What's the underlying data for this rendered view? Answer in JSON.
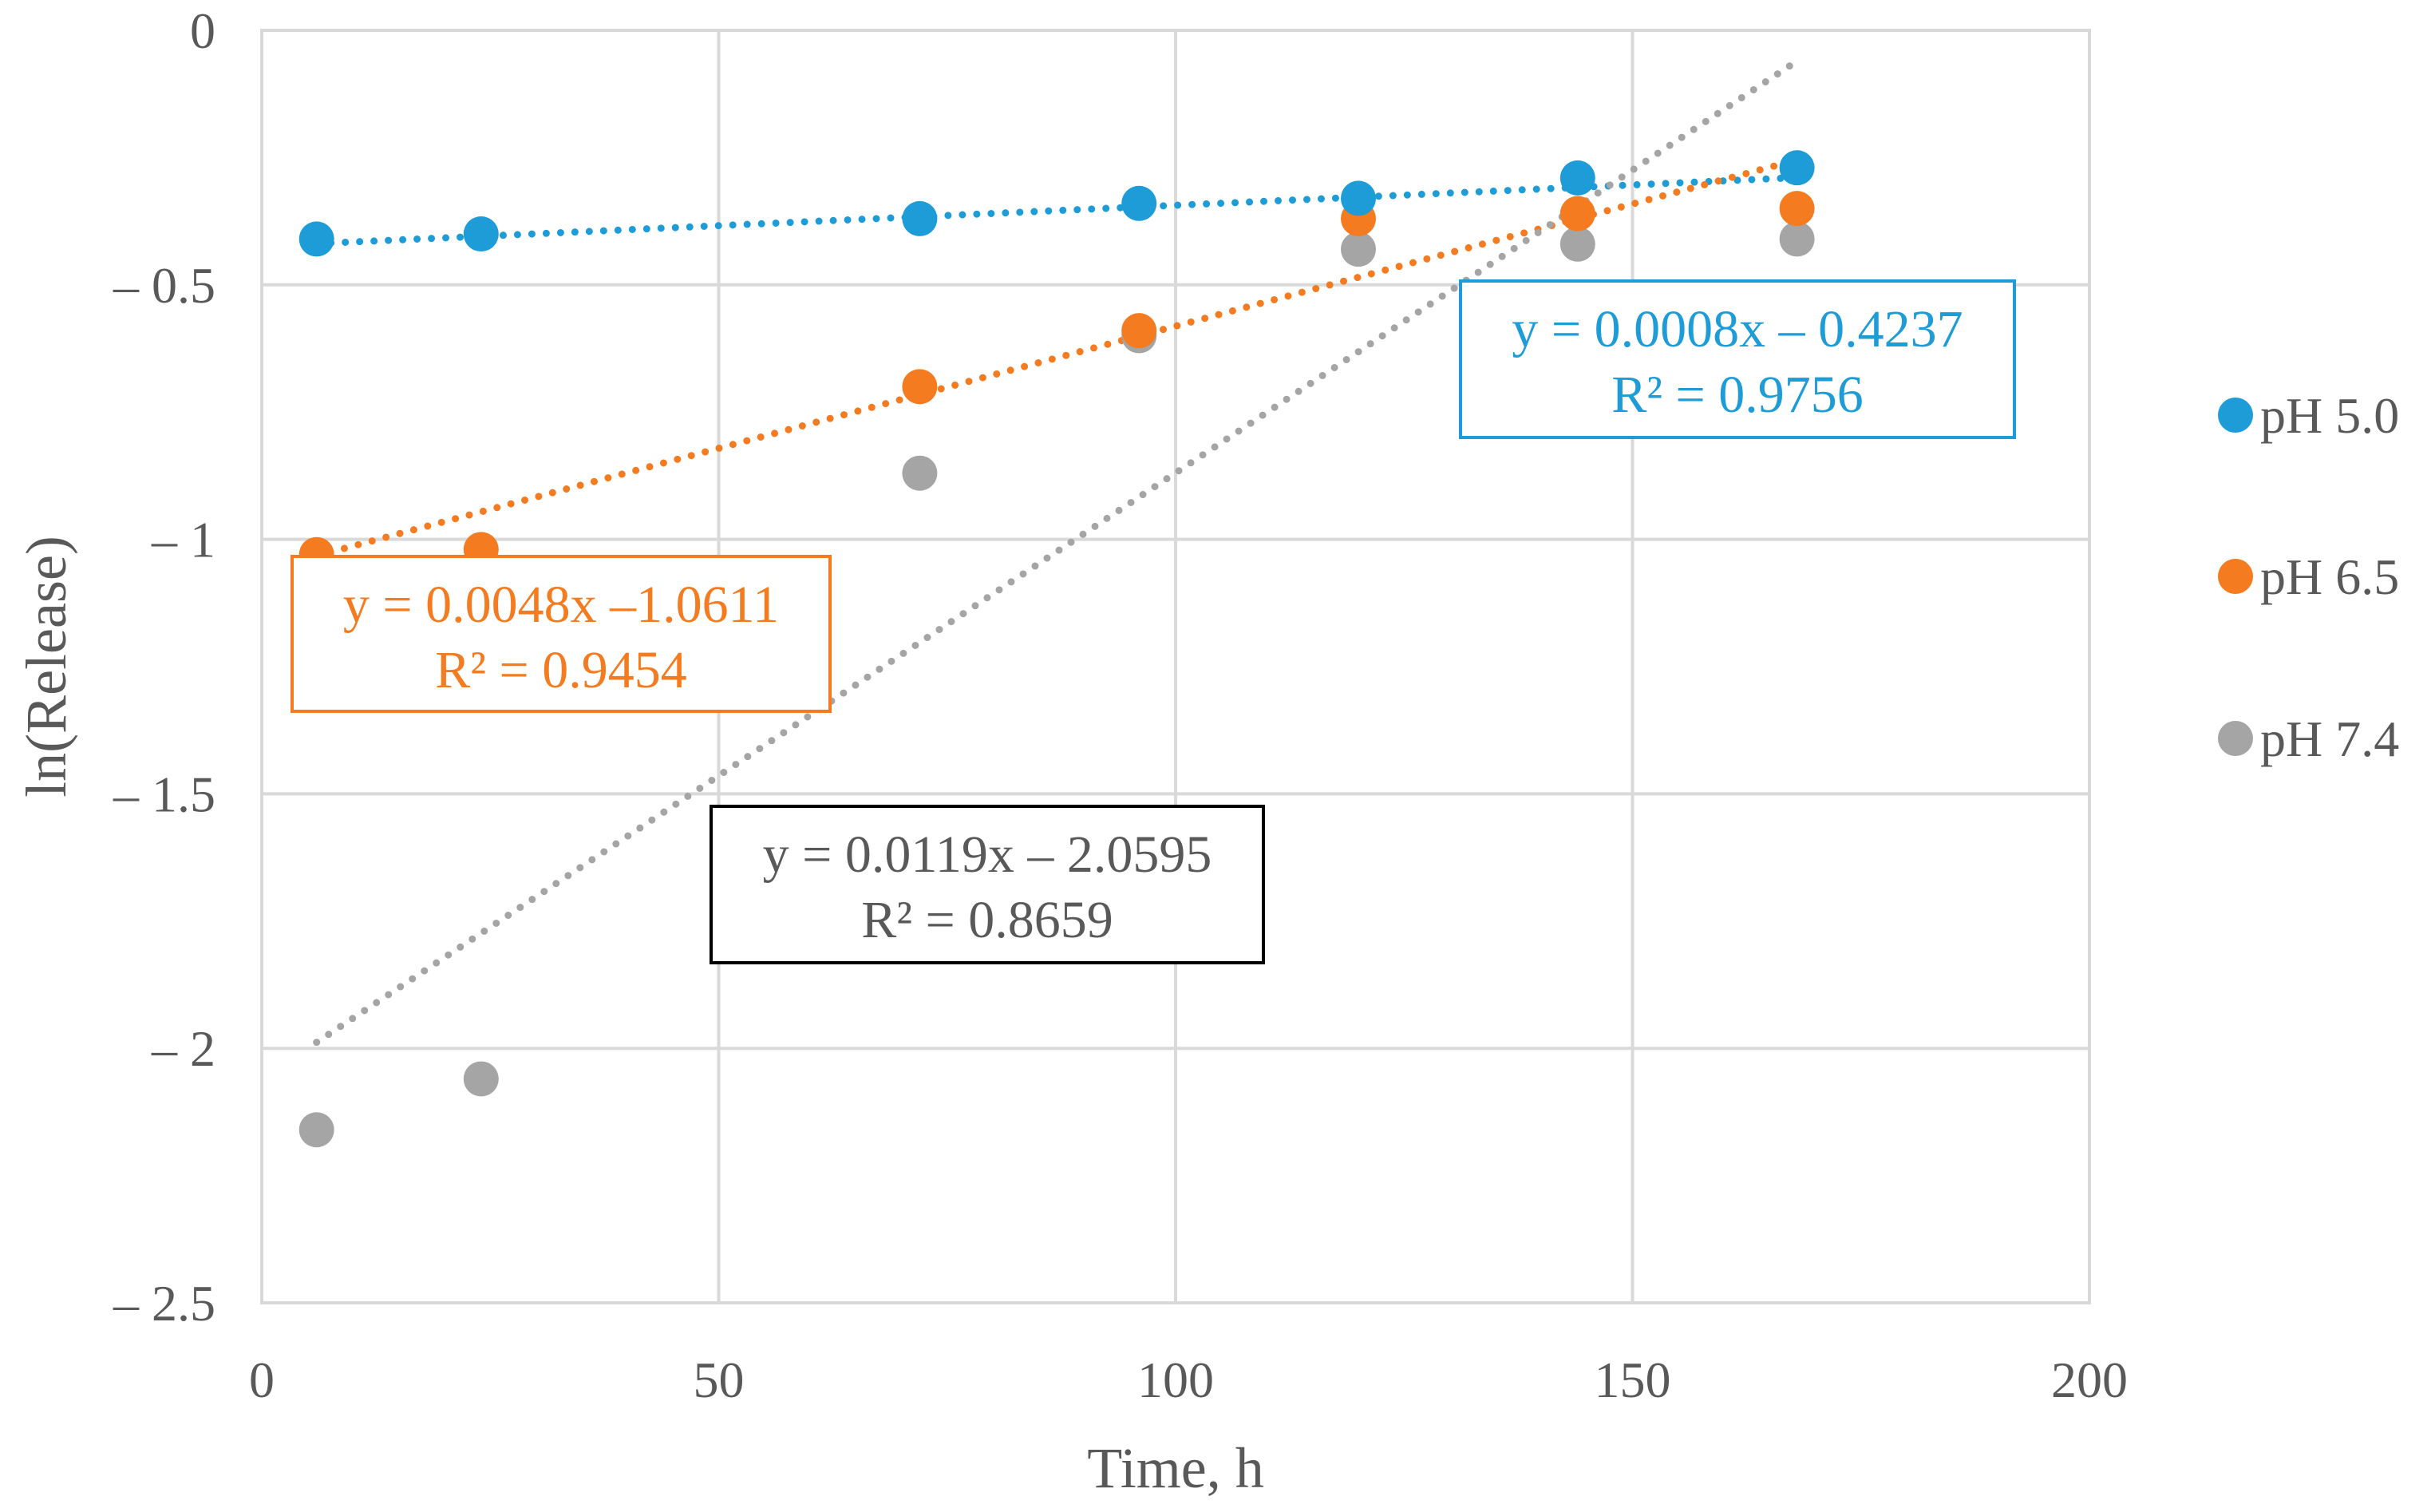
{
  "chart_data": {
    "type": "scatter",
    "title": "",
    "xlabel": "Time, h",
    "ylabel": "ln(Release)",
    "xlim": [
      0,
      200
    ],
    "ylim": [
      -2.5,
      0
    ],
    "xticks": [
      0,
      50,
      100,
      150,
      200
    ],
    "yticks": [
      0,
      -0.5,
      -1,
      -1.5,
      -2,
      -2.5
    ],
    "xtick_labels": [
      "0",
      "50",
      "100",
      "150",
      "200"
    ],
    "ytick_labels": [
      "0",
      "– 0.5",
      "– 1",
      "– 1.5",
      "– 2",
      "– 2.5"
    ],
    "grid": true,
    "legend_position": "right",
    "series": [
      {
        "name": "pH 5.0",
        "color": "#1E9CD7",
        "x": [
          6,
          24,
          72,
          96,
          120,
          144,
          168
        ],
        "y": [
          -0.41,
          -0.4,
          -0.37,
          -0.34,
          -0.33,
          -0.29,
          -0.27
        ],
        "trendline": {
          "slope": 0.0008,
          "intercept": -0.4237,
          "x_range": [
            6,
            168
          ]
        },
        "equation": {
          "line1": "y = 0.0008x – 0.4237",
          "line2": "R² = 0.9756",
          "box_color": "#1E9CD7",
          "text_color": "#1E9CD7"
        }
      },
      {
        "name": "pH 6.5",
        "color": "#F47B20",
        "x": [
          6,
          24,
          72,
          96,
          120,
          144,
          168
        ],
        "y": [
          -1.03,
          -1.02,
          -0.7,
          -0.59,
          -0.37,
          -0.36,
          -0.35
        ],
        "trendline": {
          "slope": 0.0048,
          "intercept": -1.0611,
          "x_range": [
            6,
            168
          ]
        },
        "equation": {
          "line1": "y = 0.0048x –1.0611",
          "line2": "R² = 0.9454",
          "box_color": "#F47B20",
          "text_color": "#F47B20"
        }
      },
      {
        "name": "pH 7.4",
        "color": "#A5A5A5",
        "x": [
          6,
          24,
          72,
          96,
          120,
          144,
          168
        ],
        "y": [
          -2.16,
          -2.06,
          -0.87,
          -0.6,
          -0.43,
          -0.42,
          -0.41
        ],
        "trendline": {
          "slope": 0.0119,
          "intercept": -2.0595,
          "x_range": [
            6,
            168
          ]
        },
        "equation": {
          "line1": "y = 0.0119x – 2.0595",
          "line2": "R² = 0.8659",
          "box_color": "#000000",
          "text_color": "#595959"
        }
      }
    ]
  }
}
